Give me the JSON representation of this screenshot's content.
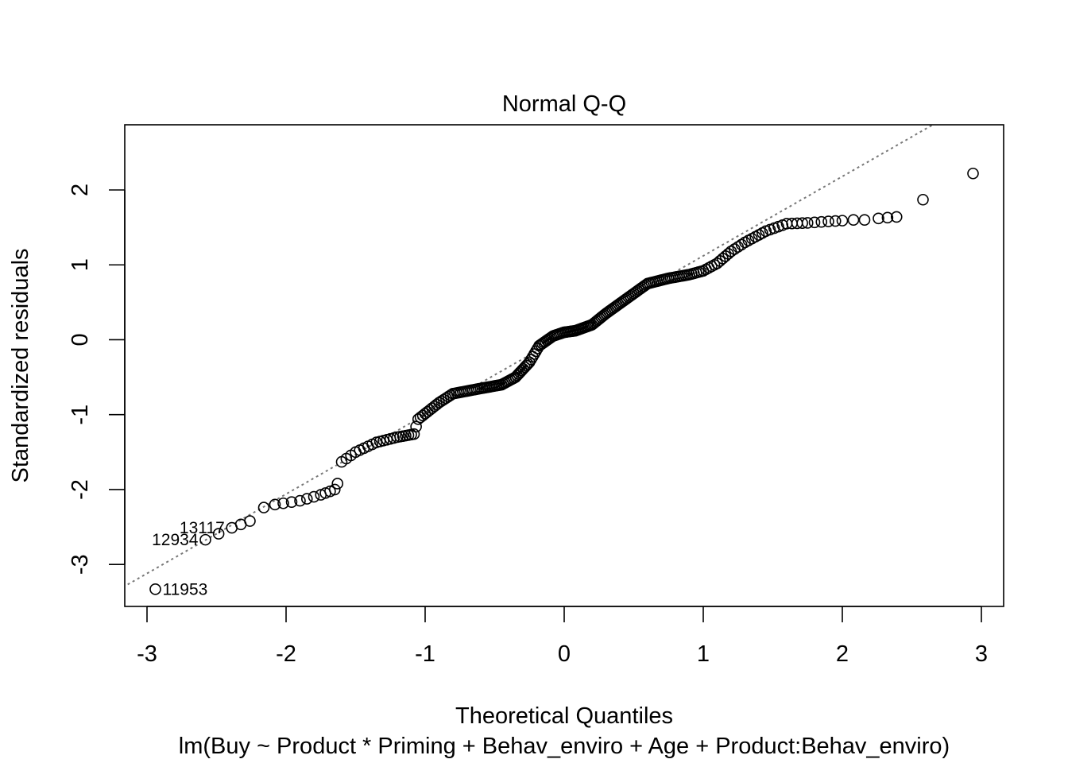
{
  "chart_data": {
    "type": "scatter",
    "title": "Normal Q-Q",
    "xlabel": "Theoretical Quantiles",
    "subtitle": "lm(Buy ~ Product * Priming + Behav_enviro + Age + Product:Behav_enviro)",
    "ylabel": "Standardized residuals",
    "xlim": [
      -3.16,
      3.16
    ],
    "ylim": [
      -3.56,
      2.87
    ],
    "xticks": [
      -3,
      -2,
      -1,
      0,
      1,
      2,
      3
    ],
    "yticks": [
      -3,
      -2,
      -1,
      0,
      1,
      2
    ],
    "grid": false,
    "reference_line": {
      "style": "dotted",
      "color": "#777777",
      "slope": 1.06,
      "intercept": 0.06
    },
    "points": {
      "x": [],
      "y": []
    },
    "labeled_points": [
      {
        "label": "11953",
        "x": -2.94,
        "y": -3.33,
        "side": "right"
      },
      {
        "label": "12934",
        "x": -2.58,
        "y": -2.67,
        "side": "left"
      },
      {
        "label": "13117",
        "x": -2.39,
        "y": -2.51,
        "side": "left"
      }
    ],
    "curve_anchors": [
      [
        -2.58,
        -2.67
      ],
      [
        -2.39,
        -2.51
      ],
      [
        -2.26,
        -2.42
      ],
      [
        -2.16,
        -2.24
      ],
      [
        -2.08,
        -2.2
      ],
      [
        -1.9,
        -2.15
      ],
      [
        -1.75,
        -2.07
      ],
      [
        -1.65,
        -2.0
      ],
      [
        -1.63,
        -1.92
      ],
      [
        -1.6,
        -1.63
      ],
      [
        -1.5,
        -1.5
      ],
      [
        -1.35,
        -1.37
      ],
      [
        -1.2,
        -1.3
      ],
      [
        -1.08,
        -1.26
      ],
      [
        -1.05,
        -1.06
      ],
      [
        -0.9,
        -0.84
      ],
      [
        -0.8,
        -0.72
      ],
      [
        -0.6,
        -0.65
      ],
      [
        -0.45,
        -0.6
      ],
      [
        -0.35,
        -0.5
      ],
      [
        -0.25,
        -0.3
      ],
      [
        -0.18,
        -0.08
      ],
      [
        -0.08,
        0.05
      ],
      [
        0.0,
        0.1
      ],
      [
        0.08,
        0.12
      ],
      [
        0.2,
        0.2
      ],
      [
        0.3,
        0.35
      ],
      [
        0.45,
        0.55
      ],
      [
        0.6,
        0.75
      ],
      [
        0.75,
        0.82
      ],
      [
        0.9,
        0.87
      ],
      [
        1.0,
        0.92
      ],
      [
        1.1,
        1.02
      ],
      [
        1.2,
        1.18
      ],
      [
        1.3,
        1.3
      ],
      [
        1.45,
        1.45
      ],
      [
        1.6,
        1.55
      ],
      [
        1.75,
        1.56
      ],
      [
        1.9,
        1.58
      ],
      [
        2.0,
        1.59
      ],
      [
        2.08,
        1.6
      ],
      [
        2.16,
        1.6
      ],
      [
        2.26,
        1.62
      ],
      [
        2.39,
        1.64
      ]
    ],
    "tail_points": [
      [
        -2.94,
        -3.33
      ],
      [
        2.58,
        1.87
      ],
      [
        2.94,
        2.22
      ]
    ]
  }
}
